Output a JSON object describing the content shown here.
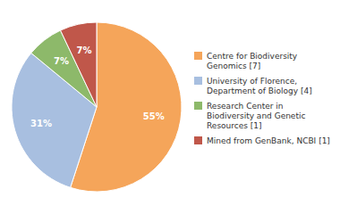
{
  "chart_data": {
    "type": "pie",
    "categories": [
      "Centre for Biodiversity\nGenomics [7]",
      "University of Florence,\nDepartment of Biology [4]",
      "Research Center in\nBiodiversity and Genetic\nResources [1]",
      "Mined from GenBank, NCBI [1]"
    ],
    "values": [
      55,
      31,
      7,
      7
    ],
    "value_labels": [
      "55%",
      "31%",
      "7%",
      "7%"
    ],
    "colors": [
      "#F5A55A",
      "#A8BFE0",
      "#8DB96A",
      "#C0574A"
    ],
    "data_labels": true,
    "legend": "right"
  }
}
